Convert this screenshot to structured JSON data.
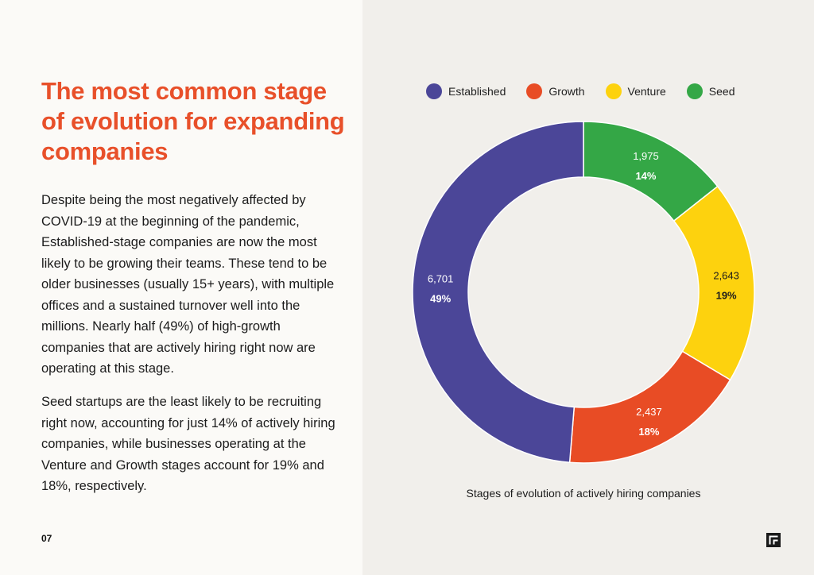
{
  "article": {
    "heading": "The most common stage of evolution for expanding companies",
    "paragraph_1": "Despite being the most negatively affected by COVID-19 at the beginning of the pandemic, Established-stage companies are now the most likely to be growing their teams. These tend to be older businesses (usually 15+ years), with multiple offices and a sustained turnover well into the millions. Nearly half (49%) of high-growth companies that are actively hiring right now are operating at this stage.",
    "paragraph_2": "Seed startups are the least likely to be recruiting right now, accounting for just 14% of actively hiring companies, while businesses operating at the Venture and Growth stages account for 19% and 18%, respectively.",
    "page_number": "07"
  },
  "colors": {
    "headline": "#e8502a",
    "left_background": "#fbfaf7",
    "right_background": "#f1efeb"
  },
  "chart_data": {
    "type": "pie",
    "variant": "donut",
    "caption": "Stages of evolution of actively hiring companies",
    "legend_position": "top",
    "categories": [
      "Seed",
      "Venture",
      "Growth",
      "Established"
    ],
    "values": [
      1975,
      2643,
      2437,
      6701
    ],
    "value_labels": [
      "1,975",
      "2,643",
      "2,437",
      "6,701"
    ],
    "percent_labels": [
      "14%",
      "19%",
      "18%",
      "49%"
    ],
    "colors": [
      "#34a746",
      "#fdd20e",
      "#e84c25",
      "#4b4698"
    ],
    "legend": [
      {
        "label": "Established",
        "color": "#4b4698"
      },
      {
        "label": "Growth",
        "color": "#e84c25"
      },
      {
        "label": "Venture",
        "color": "#fdd20e"
      },
      {
        "label": "Seed",
        "color": "#34a746"
      }
    ]
  },
  "logo": {
    "icon": "brand-logo-icon"
  }
}
